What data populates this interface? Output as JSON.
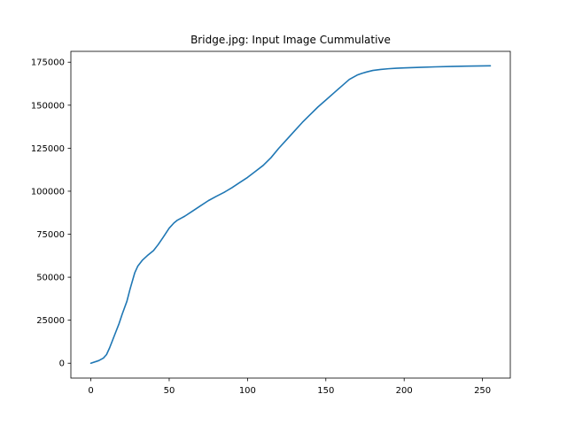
{
  "chart_data": {
    "type": "line",
    "title": "Bridge.jpg: Input Image Cummulative",
    "xlabel": "",
    "ylabel": "",
    "xlim": [
      -12.75,
      267.75
    ],
    "ylim": [
      -8633,
      181300
    ],
    "x_ticks": [
      0,
      50,
      100,
      150,
      200,
      250
    ],
    "x_tick_labels": [
      "0",
      "50",
      "100",
      "150",
      "200",
      "250"
    ],
    "y_ticks": [
      0,
      25000,
      50000,
      75000,
      100000,
      125000,
      150000,
      175000
    ],
    "y_tick_labels": [
      "0",
      "25000",
      "50000",
      "75000",
      "100000",
      "125000",
      "150000",
      "175000"
    ],
    "grid": false,
    "legend": "none",
    "series": [
      {
        "color": "#1f77b4",
        "x": [
          0,
          5,
          8,
          10,
          12,
          15,
          18,
          20,
          23,
          25,
          28,
          30,
          33,
          36,
          40,
          43,
          46,
          50,
          53,
          55,
          58,
          60,
          65,
          70,
          75,
          80,
          85,
          90,
          95,
          100,
          105,
          110,
          115,
          120,
          125,
          130,
          135,
          140,
          145,
          150,
          155,
          160,
          165,
          170,
          173,
          176,
          180,
          185,
          190,
          195,
          200,
          210,
          220,
          230,
          240,
          255
        ],
        "y": [
          0,
          1500,
          3000,
          5000,
          9000,
          16000,
          23000,
          28500,
          36000,
          43000,
          52500,
          56500,
          60000,
          62500,
          65500,
          69000,
          73000,
          78500,
          81500,
          83000,
          84500,
          85500,
          88500,
          91500,
          94500,
          97000,
          99300,
          102000,
          105000,
          108000,
          111500,
          115000,
          119500,
          125000,
          130000,
          135000,
          140000,
          144500,
          149000,
          153000,
          157000,
          161000,
          165000,
          167500,
          168500,
          169300,
          170200,
          170800,
          171200,
          171500,
          171700,
          172000,
          172300,
          172500,
          172700,
          172900
        ]
      }
    ]
  }
}
